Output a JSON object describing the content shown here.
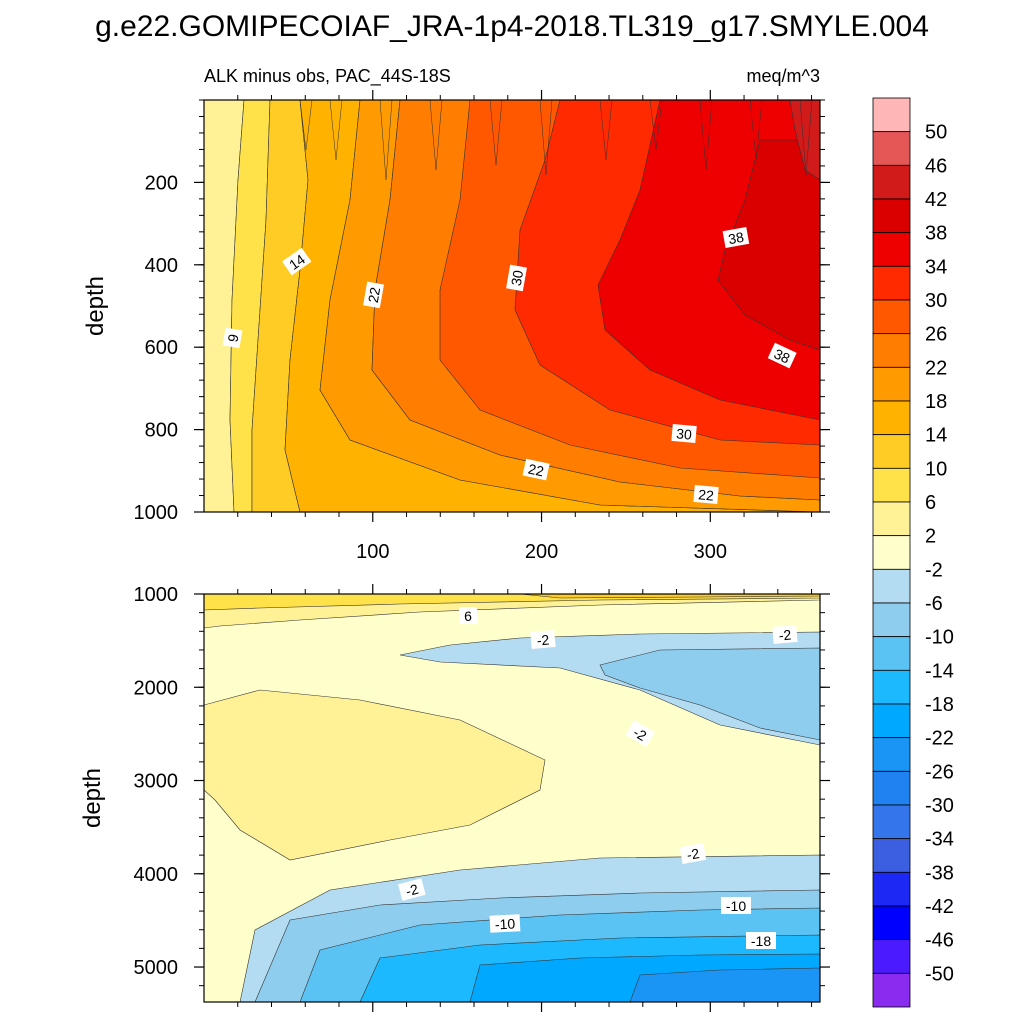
{
  "title": "g.e22.GOMIPECOIAF_JRA-1p4-2018.TL319_g17.SMYLE.004",
  "chart_data": {
    "type": "heatmap",
    "subtitle_left": "ALK minus obs, PAC_44S-18S",
    "subtitle_right": "meq/m^3",
    "x_axis": {
      "ticks": [
        100,
        200,
        300
      ],
      "tick_labels": [
        "100",
        "200",
        "300"
      ],
      "range": [
        0,
        365
      ]
    },
    "colorbar": {
      "labels": [
        "50",
        "46",
        "42",
        "38",
        "34",
        "30",
        "26",
        "22",
        "18",
        "14",
        "10",
        "6",
        "2",
        "-2",
        "-6",
        "-10",
        "-14",
        "-18",
        "-22",
        "-26",
        "-30",
        "-34",
        "-38",
        "-42",
        "-46",
        "-50"
      ],
      "colors": [
        "#ffb6b6",
        "#e55757",
        "#d11a1a",
        "#db0000",
        "#ef0000",
        "#ff2a00",
        "#ff5800",
        "#ff7d00",
        "#ff9a00",
        "#ffb300",
        "#ffcc25",
        "#ffe14a",
        "#fff296",
        "#ffffcc",
        "#b3dcf3",
        "#8ecdee",
        "#5ac3f4",
        "#1db9ff",
        "#00a8ff",
        "#1a95f5",
        "#1f82f0",
        "#3575ec",
        "#3b5fe0",
        "#1e28f5",
        "#0000ff",
        "#4b1aff",
        "#8a2bf0"
      ]
    },
    "panels": [
      {
        "name": "upper",
        "ylabel": "depth",
        "y_ticks": [
          200,
          400,
          600,
          800,
          1000
        ],
        "y_tick_labels": [
          "200",
          "400",
          "600",
          "800",
          "1000"
        ],
        "y_range": [
          0,
          1000
        ],
        "contour_labels": [
          "9",
          "14",
          "22",
          "30",
          "38",
          "38",
          "30",
          "22",
          "22"
        ]
      },
      {
        "name": "lower",
        "ylabel": "depth",
        "y_ticks": [
          1000,
          2000,
          3000,
          4000,
          5000
        ],
        "y_tick_labels": [
          "1000",
          "2000",
          "3000",
          "4000",
          "5000"
        ],
        "y_range": [
          1000,
          5375
        ],
        "contour_labels": [
          "6",
          "-2",
          "-2",
          "-2",
          "-2",
          "-2",
          "-10",
          "-10",
          "-18"
        ]
      }
    ]
  }
}
